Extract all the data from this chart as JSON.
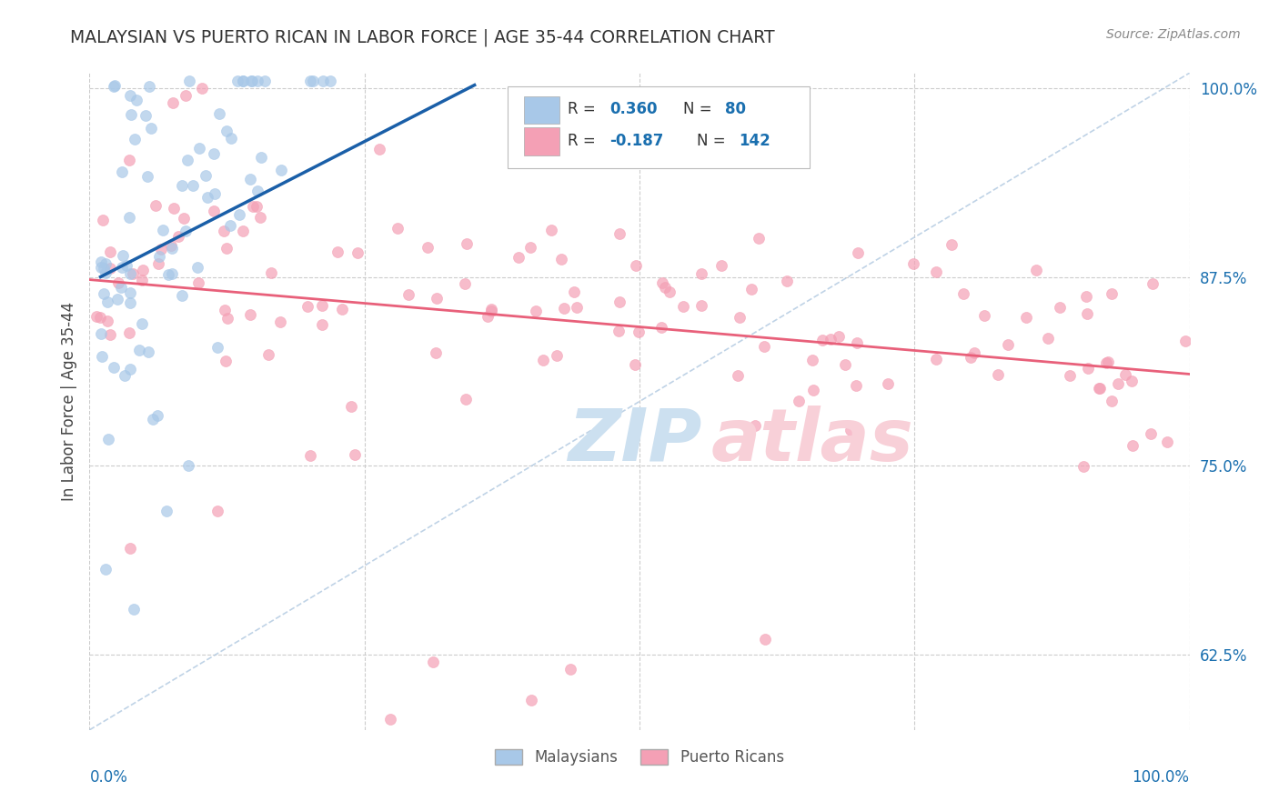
{
  "title": "MALAYSIAN VS PUERTO RICAN IN LABOR FORCE | AGE 35-44 CORRELATION CHART",
  "source": "Source: ZipAtlas.com",
  "ylabel": "In Labor Force | Age 35-44",
  "ytick_vals": [
    0.625,
    0.75,
    0.875,
    1.0
  ],
  "ytick_labels": [
    "62.5%",
    "75.0%",
    "87.5%",
    "100.0%"
  ],
  "blue_color": "#a8c8e8",
  "pink_color": "#f4a0b5",
  "blue_line_color": "#1a5fa8",
  "pink_line_color": "#e8607a",
  "diagonal_color": "#b0c8e0",
  "text_blue": "#1a6faf",
  "title_color": "#333333",
  "source_color": "#888888",
  "background": "#ffffff",
  "grid_color": "#cccccc",
  "watermark_blue": "#cce0f0",
  "watermark_pink": "#f8d0d8",
  "xlim": [
    0.0,
    1.0
  ],
  "ylim": [
    0.575,
    1.01
  ],
  "mal_R": 0.36,
  "mal_N": 80,
  "pr_R": -0.187,
  "pr_N": 142,
  "mal_seed": 42,
  "pr_seed": 99
}
